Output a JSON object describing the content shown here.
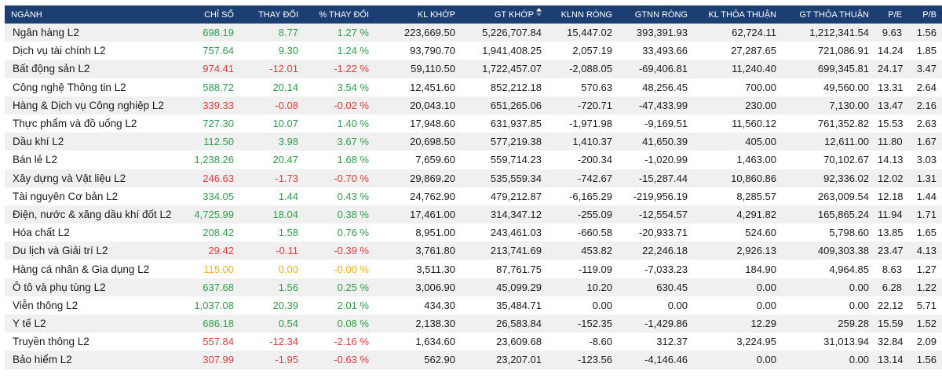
{
  "colors": {
    "header_bg": "#1b3f73",
    "up": "#2e9e4a",
    "down": "#e03b3b",
    "flat": "#f2b116",
    "row_alt": "#f0f0f0"
  },
  "sort": {
    "column": "GT KHỚP",
    "icon": "sort-arrows-icon"
  },
  "table": {
    "headers": [
      "NGÀNH",
      "CHỈ SỐ",
      "THAY ĐỔI",
      "% THAY ĐỔI",
      "KL KHỚP",
      "GT KHỚP",
      "KLNN RÒNG",
      "GTNN RÒNG",
      "KL THỎA THUẬN",
      "GT THỎA THUẬN",
      "P/E",
      "P/B"
    ],
    "rows": [
      {
        "trend": "up",
        "cells": [
          "Ngân hàng L2",
          "698.19",
          "8.77",
          "1.27 %",
          "223,669.50",
          "5,226,707.84",
          "15,447.02",
          "393,391.93",
          "62,724.11",
          "1,212,341.54",
          "9.63",
          "1.56"
        ]
      },
      {
        "trend": "up",
        "cells": [
          "Dịch vụ tài chính L2",
          "757.64",
          "9.30",
          "1.24 %",
          "93,790.70",
          "1,941,408.25",
          "2,057.19",
          "33,493.66",
          "27,287.65",
          "721,086.91",
          "14.24",
          "1.85"
        ]
      },
      {
        "trend": "down",
        "cells": [
          "Bất động sản L2",
          "974.41",
          "-12.01",
          "-1.22 %",
          "59,110.50",
          "1,722,457.07",
          "-2,088.05",
          "-69,406.81",
          "11,240.40",
          "699,345.81",
          "24.17",
          "3.47"
        ]
      },
      {
        "trend": "up",
        "cells": [
          "Công nghệ Thông tin L2",
          "588.72",
          "20.14",
          "3.54 %",
          "12,451.60",
          "852,212.18",
          "570.63",
          "48,256.45",
          "700.00",
          "49,560.00",
          "13.31",
          "2.64"
        ]
      },
      {
        "trend": "down",
        "cells": [
          "Hàng & Dịch vụ Công nghiệp L2",
          "339.33",
          "-0.08",
          "-0.02 %",
          "20,043.10",
          "651,265.06",
          "-720.71",
          "-47,433.99",
          "230.00",
          "7,130.00",
          "13.47",
          "2.16"
        ]
      },
      {
        "trend": "up",
        "cells": [
          "Thực phẩm và đồ uống L2",
          "727.30",
          "10.07",
          "1.40 %",
          "17,948.60",
          "631,937.85",
          "-1,971.98",
          "-9,169.51",
          "11,560.12",
          "761,352.82",
          "15.53",
          "2.63"
        ]
      },
      {
        "trend": "up",
        "cells": [
          "Dầu khí L2",
          "112.50",
          "3.98",
          "3.67 %",
          "20,698.50",
          "577,219.38",
          "1,410.37",
          "41,650.39",
          "405.00",
          "12,611.00",
          "11.80",
          "1.67"
        ]
      },
      {
        "trend": "up",
        "cells": [
          "Bán lẻ L2",
          "1,238.26",
          "20.47",
          "1.68 %",
          "7,659.60",
          "559,714.23",
          "-200.34",
          "-1,020.99",
          "1,463.00",
          "70,102.67",
          "14.13",
          "3.03"
        ]
      },
      {
        "trend": "down",
        "cells": [
          "Xây dựng và Vật liệu L2",
          "246.63",
          "-1.73",
          "-0.70 %",
          "29,869.20",
          "535,559.34",
          "-742.67",
          "-15,287.44",
          "10,860.86",
          "92,336.02",
          "12.02",
          "1.31"
        ]
      },
      {
        "trend": "up",
        "cells": [
          "Tài nguyên Cơ bản L2",
          "334.05",
          "1.44",
          "0.43 %",
          "24,762.90",
          "479,212.87",
          "-6,165.29",
          "-219,956.19",
          "8,285.57",
          "263,009.54",
          "12.18",
          "1.44"
        ]
      },
      {
        "trend": "up",
        "cells": [
          "Điện, nước & xăng dầu khí đốt L2",
          "4,725.99",
          "18.04",
          "0.38 %",
          "17,461.00",
          "314,347.12",
          "-255.09",
          "-12,554.57",
          "4,291.82",
          "165,865.24",
          "11.94",
          "1.71"
        ]
      },
      {
        "trend": "up",
        "cells": [
          "Hóa chất L2",
          "208.42",
          "1.58",
          "0.76 %",
          "8,951.00",
          "243,461.03",
          "-660.58",
          "-20,933.71",
          "524.60",
          "5,798.60",
          "13.85",
          "1.65"
        ]
      },
      {
        "trend": "down",
        "cells": [
          "Du lịch và Giải trí L2",
          "29.42",
          "-0.11",
          "-0.39 %",
          "3,761.80",
          "213,741.69",
          "453.82",
          "22,246.18",
          "2,926.13",
          "409,303.38",
          "23.47",
          "4.13"
        ]
      },
      {
        "trend": "flat",
        "cells": [
          "Hàng cá nhân & Gia dụng L2",
          "115.00",
          "0.00",
          "-0.00 %",
          "3,511.30",
          "87,761.75",
          "-119.09",
          "-7,033.23",
          "184.90",
          "4,964.85",
          "8.63",
          "1.27"
        ]
      },
      {
        "trend": "up",
        "cells": [
          "Ô tô và phụ tùng L2",
          "637.68",
          "1.56",
          "0.25 %",
          "3,006.90",
          "45,099.29",
          "10.20",
          "630.45",
          "0.00",
          "0.00",
          "6.28",
          "1.22"
        ]
      },
      {
        "trend": "up",
        "cells": [
          "Viễn thông L2",
          "1,037.08",
          "20.39",
          "2.01 %",
          "434.30",
          "35,484.71",
          "0.00",
          "0.00",
          "0.00",
          "0.00",
          "22.12",
          "5.71"
        ]
      },
      {
        "trend": "up",
        "cells": [
          "Y tế L2",
          "686.18",
          "0.54",
          "0.08 %",
          "2,138.30",
          "26,583.84",
          "-152.35",
          "-1,429.86",
          "12.29",
          "259.28",
          "15.59",
          "1.52"
        ]
      },
      {
        "trend": "down",
        "cells": [
          "Truyền thông L2",
          "557.84",
          "-12.34",
          "-2.16 %",
          "1,634.60",
          "23,609.68",
          "-8.60",
          "312.37",
          "3,224.95",
          "31,013.94",
          "32.84",
          "2.09"
        ]
      },
      {
        "trend": "down",
        "cells": [
          "Bảo hiểm L2",
          "307.99",
          "-1.95",
          "-0.63 %",
          "562.90",
          "23,207.01",
          "-123.56",
          "-4,146.46",
          "0.00",
          "0.00",
          "13.14",
          "1.56"
        ]
      }
    ]
  }
}
